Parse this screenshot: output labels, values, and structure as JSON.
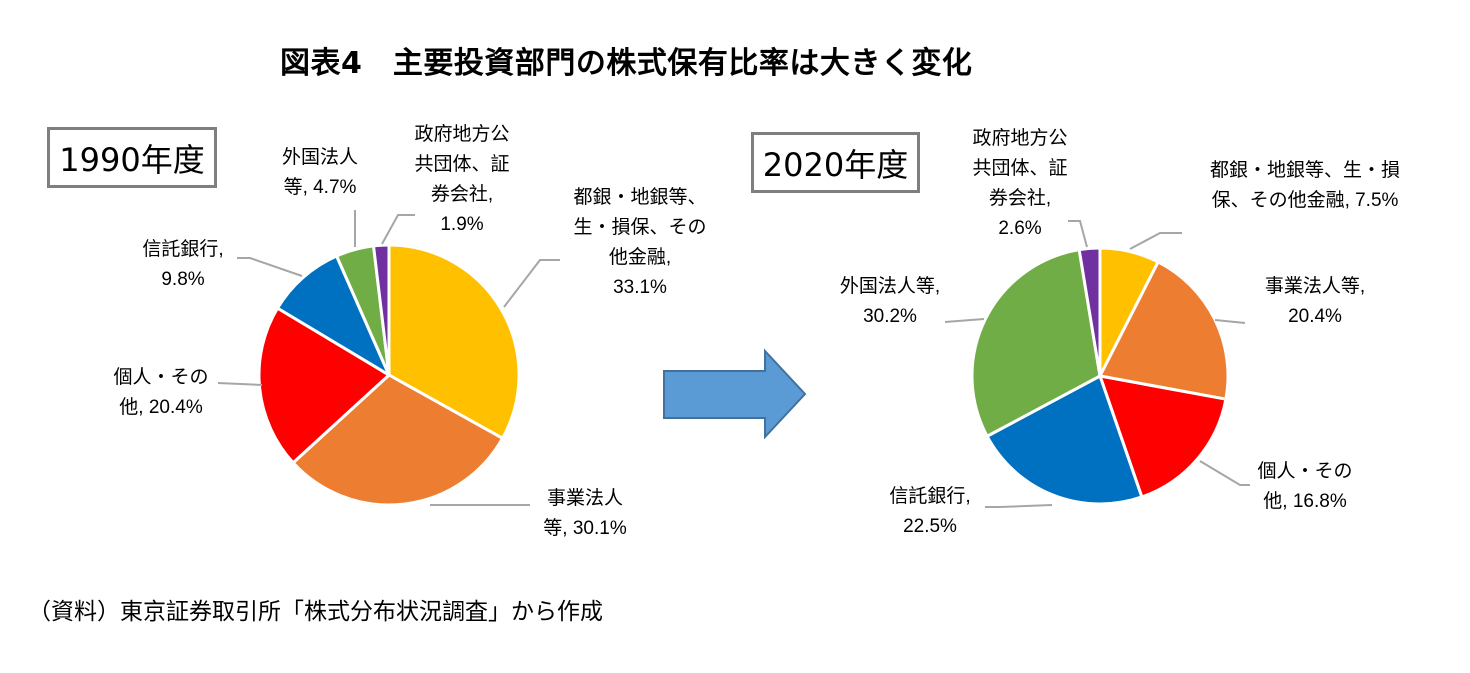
{
  "title": "図表4　主要投資部門の株式保有比率は大きく変化",
  "source": "（資料）東京証券取引所「株式分布状況調査」から作成",
  "colors": {
    "banks_insurance": "#FFC000",
    "business_corps": "#ED7D31",
    "individuals": "#FF0000",
    "trust_banks": "#0070C0",
    "foreigners": "#70AD47",
    "govt_securities": "#7030A0",
    "arrow_fill": "#5B9BD5",
    "arrow_stroke": "#41719C",
    "leader_line": "#A6A6A6",
    "box_border": "#7F7F7F"
  },
  "chart_data": [
    {
      "type": "pie",
      "title": "1990年度",
      "categories": [
        "都銀・地銀等、生・損保、その他金融",
        "事業法人等",
        "個人・その他",
        "信託銀行",
        "外国法人等",
        "政府地方公共団体、証券会社"
      ],
      "values": [
        33.1,
        30.1,
        20.4,
        9.8,
        4.7,
        1.9
      ],
      "unit": "%",
      "start_angle": "12 o'clock, clockwise",
      "labels": {
        "banks": [
          "都銀・地銀等、",
          "生・損保、その",
          "他金融,",
          "33.1%"
        ],
        "business": [
          "事業法人",
          "等, 30.1%"
        ],
        "individuals": [
          "個人・その",
          "他, 20.4%"
        ],
        "trust": [
          "信託銀行,",
          "9.8%"
        ],
        "foreign": [
          "外国法人",
          "等, 4.7%"
        ],
        "govt": [
          "政府地方公",
          "共団体、証",
          "券会社,",
          "1.9%"
        ]
      }
    },
    {
      "type": "pie",
      "title": "2020年度",
      "categories": [
        "都銀・地銀等、生・損保、その他金融",
        "事業法人等",
        "個人・その他",
        "信託銀行",
        "外国法人等",
        "政府地方公共団体、証券会社"
      ],
      "values": [
        7.5,
        20.4,
        16.8,
        22.5,
        30.2,
        2.6
      ],
      "unit": "%",
      "start_angle": "12 o'clock, clockwise",
      "labels": {
        "banks": [
          "都銀・地銀等、生・損",
          "保、その他金融, 7.5%"
        ],
        "business": [
          "事業法人等,",
          "20.4%"
        ],
        "individuals": [
          "個人・その",
          "他, 16.8%"
        ],
        "trust": [
          "信託銀行,",
          "22.5%"
        ],
        "foreign": [
          "外国法人等,",
          "30.2%"
        ],
        "govt": [
          "政府地方公",
          "共団体、証",
          "券会社,",
          "2.6%"
        ]
      }
    }
  ]
}
